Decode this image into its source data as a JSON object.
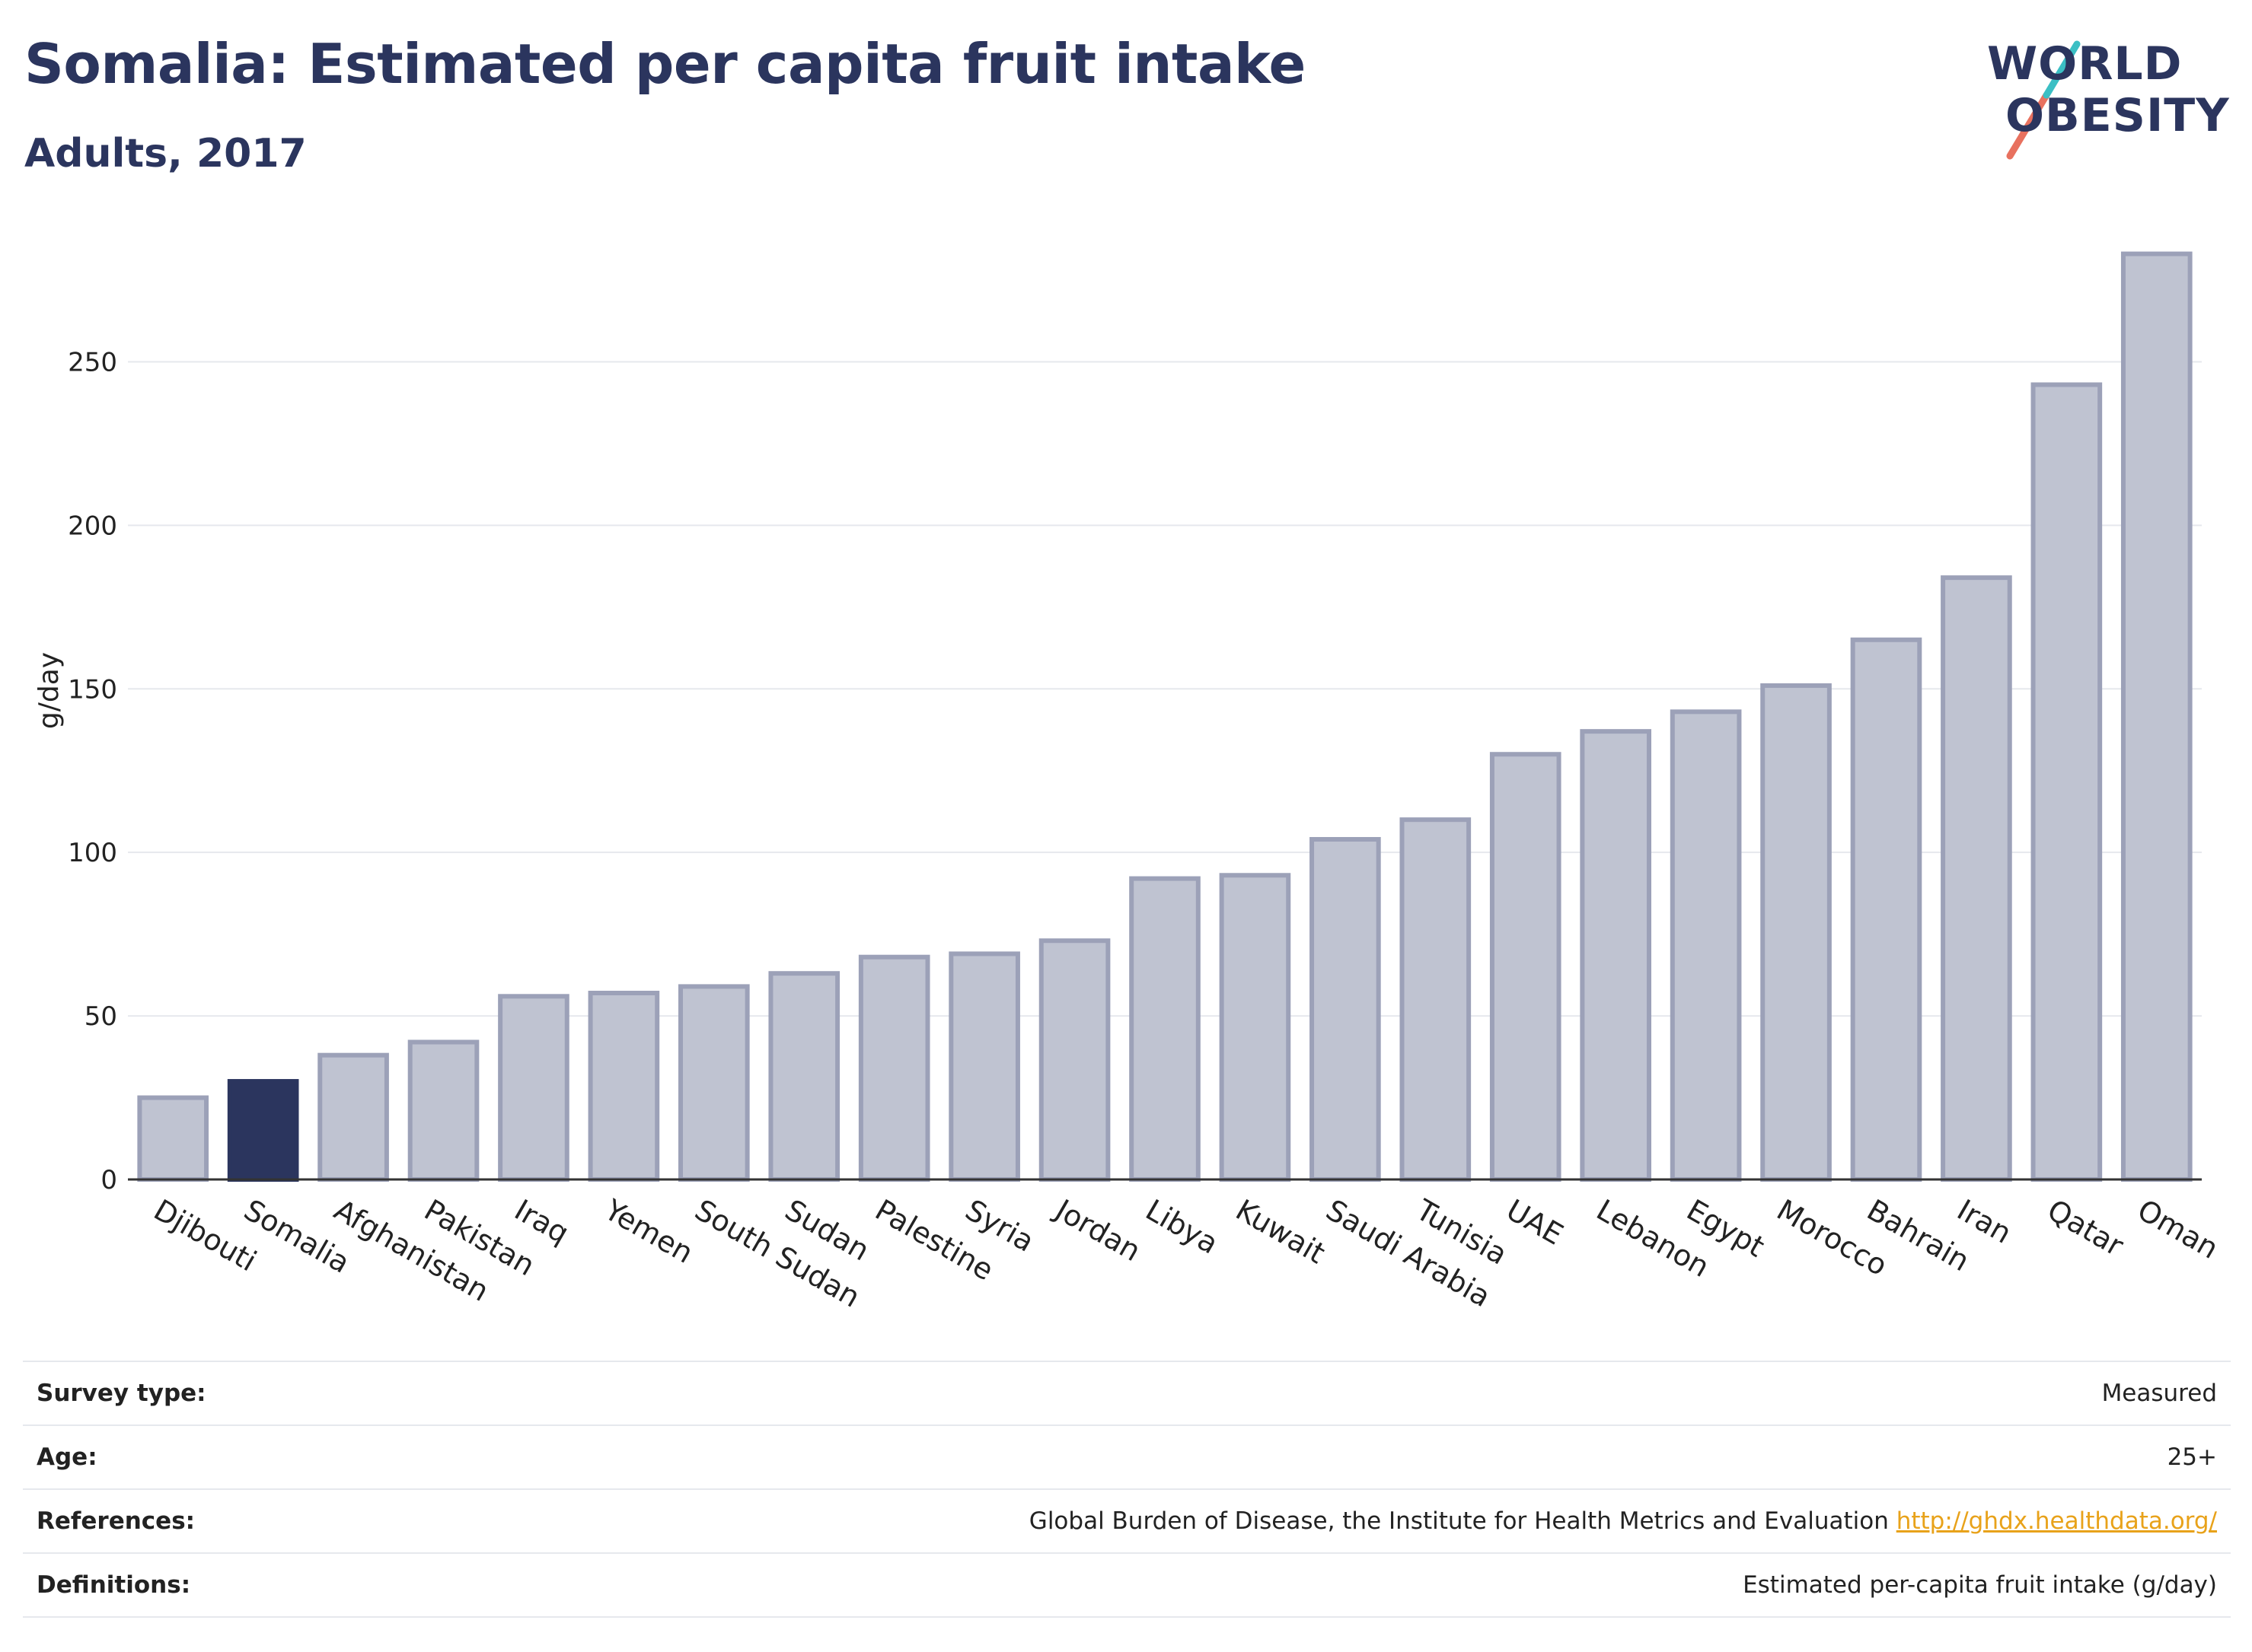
{
  "header": {
    "title": "Somalia: Estimated per capita fruit intake",
    "subtitle": "Adults, 2017"
  },
  "logo": {
    "line1": "WORLD",
    "line2": "OBESITY"
  },
  "colors": {
    "title": "#2b355e",
    "bar_default": "#bfc3d1",
    "bar_border": "#9ca1b8",
    "bar_highlight": "#2b355e",
    "grid": "#e6e8ed",
    "link": "#e8a21a",
    "logo_teal": "#3bbfc4",
    "logo_coral": "#e8715f"
  },
  "chart_data": {
    "type": "bar",
    "title": "Somalia: Estimated per capita fruit intake",
    "subtitle": "Adults, 2017",
    "ylabel": "g/day",
    "xlabel": "",
    "ylim": [
      0,
      285
    ],
    "yticks": [
      0,
      50,
      100,
      150,
      200,
      250
    ],
    "grid": true,
    "highlight": "Somalia",
    "categories": [
      "Djibouti",
      "Somalia",
      "Afghanistan",
      "Pakistan",
      "Iraq",
      "Yemen",
      "South Sudan",
      "Sudan",
      "Palestine",
      "Syria",
      "Jordan",
      "Libya",
      "Kuwait",
      "Saudi Arabia",
      "Tunisia",
      "UAE",
      "Lebanon",
      "Egypt",
      "Morocco",
      "Bahrain",
      "Iran",
      "Qatar",
      "Oman"
    ],
    "values": [
      25,
      30,
      38,
      42,
      56,
      57,
      59,
      63,
      68,
      69,
      73,
      92,
      93,
      104,
      110,
      130,
      137,
      143,
      151,
      165,
      184,
      243,
      283
    ]
  },
  "info": {
    "rows": [
      {
        "key": "Survey type:",
        "value": "Measured"
      },
      {
        "key": "Age:",
        "value": "25+"
      },
      {
        "key": "References:",
        "value": "Global Burden of Disease, the Institute for Health Metrics and Evaluation",
        "link": "http://ghdx.healthdata.org/"
      },
      {
        "key": "Definitions:",
        "value": "Estimated per-capita fruit intake (g/day)"
      }
    ]
  }
}
